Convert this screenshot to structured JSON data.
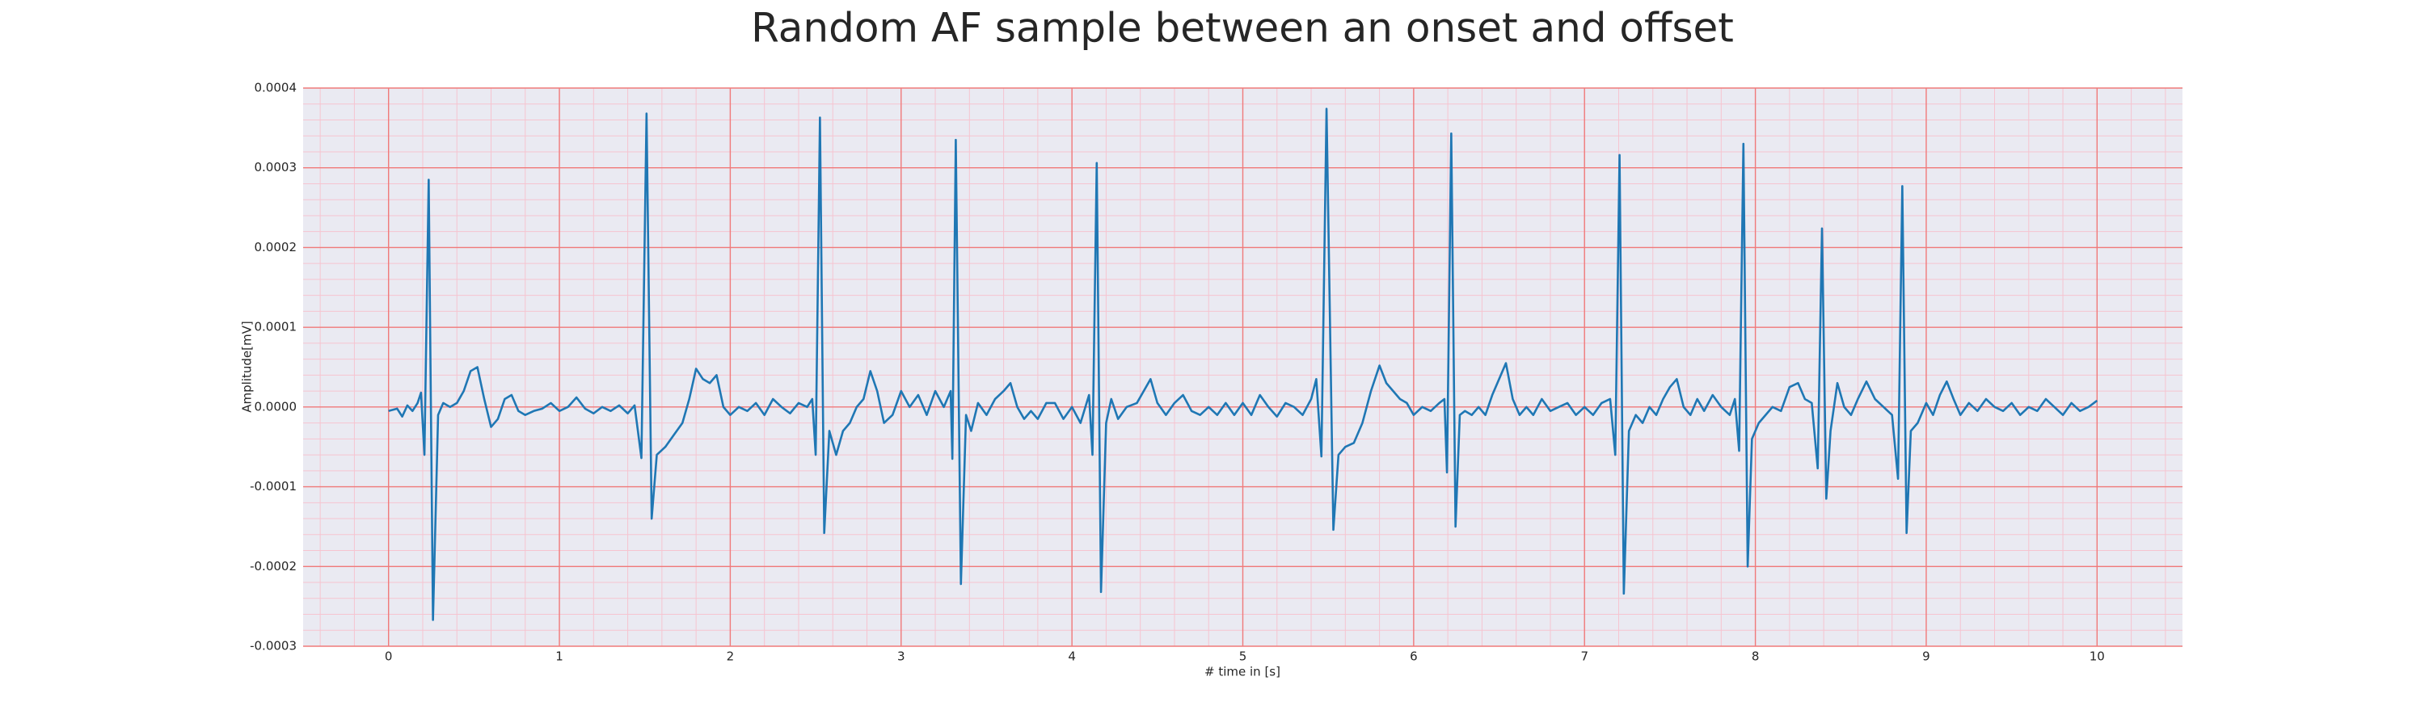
{
  "chart_data": {
    "type": "line",
    "title": "Random AF sample between an onset and offset",
    "x_label": "# time in [s]",
    "y_label": "Amplitude[mV]",
    "color": "#1f77b4",
    "background": "#eaeaf2",
    "grid": true,
    "grid_color": "#f07a7a",
    "minor_grid": true,
    "minor_grid_color": "#f6c4d0",
    "xlim": [
      -0.5,
      10.5
    ],
    "ylim": [
      -0.0003,
      0.0004
    ],
    "xticks": [
      0,
      1,
      2,
      3,
      4,
      5,
      6,
      7,
      8,
      9,
      10
    ],
    "yticks": [
      -0.0003,
      -0.0002,
      -0.0001,
      {
        "value": 0,
        "label": "0.0000"
      },
      0.0001,
      0.0002,
      0.0003,
      0.0004
    ],
    "x": [
      0.0,
      0.05,
      0.08,
      0.11,
      0.14,
      0.17,
      0.19,
      0.21,
      0.235,
      0.26,
      0.29,
      0.32,
      0.36,
      0.4,
      0.44,
      0.48,
      0.52,
      0.56,
      0.6,
      0.64,
      0.68,
      0.72,
      0.76,
      0.8,
      0.85,
      0.9,
      0.95,
      1.0,
      1.05,
      1.1,
      1.15,
      1.2,
      1.25,
      1.3,
      1.35,
      1.4,
      1.44,
      1.48,
      1.51,
      1.54,
      1.57,
      1.62,
      1.67,
      1.72,
      1.76,
      1.8,
      1.84,
      1.88,
      1.92,
      1.96,
      2.0,
      2.05,
      2.1,
      2.15,
      2.2,
      2.25,
      2.3,
      2.35,
      2.4,
      2.45,
      2.48,
      2.5,
      2.525,
      2.55,
      2.58,
      2.62,
      2.66,
      2.7,
      2.74,
      2.78,
      2.82,
      2.86,
      2.9,
      2.95,
      3.0,
      3.05,
      3.1,
      3.15,
      3.2,
      3.25,
      3.29,
      3.3,
      3.32,
      3.35,
      3.38,
      3.41,
      3.45,
      3.5,
      3.55,
      3.6,
      3.64,
      3.68,
      3.72,
      3.76,
      3.8,
      3.85,
      3.9,
      3.95,
      4.0,
      4.05,
      4.1,
      4.12,
      4.145,
      4.17,
      4.2,
      4.23,
      4.27,
      4.32,
      4.38,
      4.42,
      4.46,
      4.5,
      4.55,
      4.6,
      4.65,
      4.7,
      4.75,
      4.8,
      4.85,
      4.9,
      4.95,
      5.0,
      5.05,
      5.1,
      5.15,
      5.2,
      5.25,
      5.3,
      5.35,
      5.4,
      5.43,
      5.46,
      5.49,
      5.53,
      5.56,
      5.6,
      5.65,
      5.7,
      5.75,
      5.8,
      5.84,
      5.88,
      5.92,
      5.96,
      6.0,
      6.05,
      6.1,
      6.15,
      6.18,
      6.195,
      6.22,
      6.245,
      6.27,
      6.3,
      6.34,
      6.38,
      6.42,
      6.46,
      6.5,
      6.54,
      6.58,
      6.62,
      6.66,
      6.7,
      6.75,
      6.8,
      6.85,
      6.9,
      6.95,
      7.0,
      7.05,
      7.1,
      7.15,
      7.18,
      7.205,
      7.23,
      7.26,
      7.3,
      7.34,
      7.38,
      7.42,
      7.46,
      7.5,
      7.54,
      7.58,
      7.62,
      7.66,
      7.7,
      7.75,
      7.8,
      7.85,
      7.88,
      7.905,
      7.93,
      7.955,
      7.98,
      8.02,
      8.06,
      8.1,
      8.15,
      8.2,
      8.25,
      8.29,
      8.33,
      8.365,
      8.39,
      8.415,
      8.44,
      8.48,
      8.52,
      8.56,
      8.6,
      8.65,
      8.7,
      8.75,
      8.8,
      8.835,
      8.86,
      8.885,
      8.91,
      8.95,
      9.0,
      9.04,
      9.08,
      9.12,
      9.16,
      9.2,
      9.25,
      9.3,
      9.35,
      9.4,
      9.45,
      9.5,
      9.55,
      9.6,
      9.65,
      9.7,
      9.75,
      9.8,
      9.85,
      9.9,
      9.95,
      10.0
    ],
    "values": [
      -5e-06,
      -2e-06,
      -1.2e-05,
      2e-06,
      -5e-06,
      5e-06,
      1.8e-05,
      -6e-05,
      0.000285,
      -0.000267,
      -1e-05,
      5e-06,
      0.0,
      5e-06,
      2e-05,
      4.5e-05,
      5e-05,
      1e-05,
      -2.5e-05,
      -1.5e-05,
      1e-05,
      1.5e-05,
      -5e-06,
      -1e-05,
      -5e-06,
      -2e-06,
      5e-06,
      -5e-06,
      0.0,
      1.2e-05,
      -2e-06,
      -8e-06,
      0.0,
      -5e-06,
      2e-06,
      -8e-06,
      2e-06,
      -6.4e-05,
      0.000368,
      -0.00014,
      -6e-05,
      -5e-05,
      -3.5e-05,
      -2e-05,
      1e-05,
      4.8e-05,
      3.5e-05,
      3e-05,
      4e-05,
      0.0,
      -1e-05,
      0.0,
      -5e-06,
      5e-06,
      -1e-05,
      1e-05,
      0.0,
      -8e-06,
      5e-06,
      0.0,
      1e-05,
      -6e-05,
      0.000363,
      -0.000158,
      -3e-05,
      -6e-05,
      -3e-05,
      -2e-05,
      0.0,
      1e-05,
      4.5e-05,
      2e-05,
      -2e-05,
      -1e-05,
      2e-05,
      0.0,
      1.5e-05,
      -1e-05,
      2e-05,
      0.0,
      2e-05,
      -6.5e-05,
      0.000335,
      -0.000222,
      -1e-05,
      -3e-05,
      5e-06,
      -1e-05,
      1e-05,
      2e-05,
      3e-05,
      0.0,
      -1.5e-05,
      -5e-06,
      -1.5e-05,
      5e-06,
      5e-06,
      -1.5e-05,
      0.0,
      -2e-05,
      1.5e-05,
      -6e-05,
      0.000306,
      -0.000232,
      -2e-05,
      1e-05,
      -1.5e-05,
      0.0,
      5e-06,
      2e-05,
      3.5e-05,
      5e-06,
      -1e-05,
      5e-06,
      1.5e-05,
      -5e-06,
      -1e-05,
      0.0,
      -1e-05,
      5e-06,
      -1e-05,
      5e-06,
      -1e-05,
      1.5e-05,
      0.0,
      -1.2e-05,
      5e-06,
      0.0,
      -1e-05,
      1e-05,
      3.5e-05,
      -6.2e-05,
      0.000374,
      -0.000154,
      -6e-05,
      -5e-05,
      -4.5e-05,
      -2e-05,
      2e-05,
      5.2e-05,
      3e-05,
      2e-05,
      1e-05,
      5e-06,
      -1e-05,
      0.0,
      -5e-06,
      5e-06,
      1e-05,
      -8.2e-05,
      0.000343,
      -0.00015,
      -1e-05,
      -5e-06,
      -1e-05,
      0.0,
      -1e-05,
      1.5e-05,
      3.5e-05,
      5.5e-05,
      1e-05,
      -1e-05,
      0.0,
      -1e-05,
      1e-05,
      -5e-06,
      0.0,
      5e-06,
      -1e-05,
      0.0,
      -1e-05,
      5e-06,
      1e-05,
      -6e-05,
      0.000316,
      -0.000234,
      -3e-05,
      -1e-05,
      -2e-05,
      0.0,
      -1e-05,
      1e-05,
      2.5e-05,
      3.5e-05,
      0.0,
      -1e-05,
      1e-05,
      -5e-06,
      1.5e-05,
      0.0,
      -1e-05,
      1e-05,
      -5.5e-05,
      0.00033,
      -0.0002,
      -4e-05,
      -2e-05,
      -1e-05,
      0.0,
      -5e-06,
      2.5e-05,
      3e-05,
      1e-05,
      5e-06,
      -7.7e-05,
      0.000224,
      -0.000115,
      -3e-05,
      3e-05,
      0.0,
      -1e-05,
      1e-05,
      3.2e-05,
      1e-05,
      0.0,
      -1e-05,
      -9e-05,
      0.000277,
      -0.000158,
      -3e-05,
      -2e-05,
      5e-06,
      -1e-05,
      1.5e-05,
      3.2e-05,
      1e-05,
      -1e-05,
      5e-06,
      -5e-06,
      1e-05,
      0.0,
      -5e-06,
      5e-06,
      -1e-05,
      0.0,
      -5e-06,
      1e-05,
      0.0,
      -1e-05,
      5e-06,
      -5e-06,
      0.0,
      8e-06
    ]
  }
}
